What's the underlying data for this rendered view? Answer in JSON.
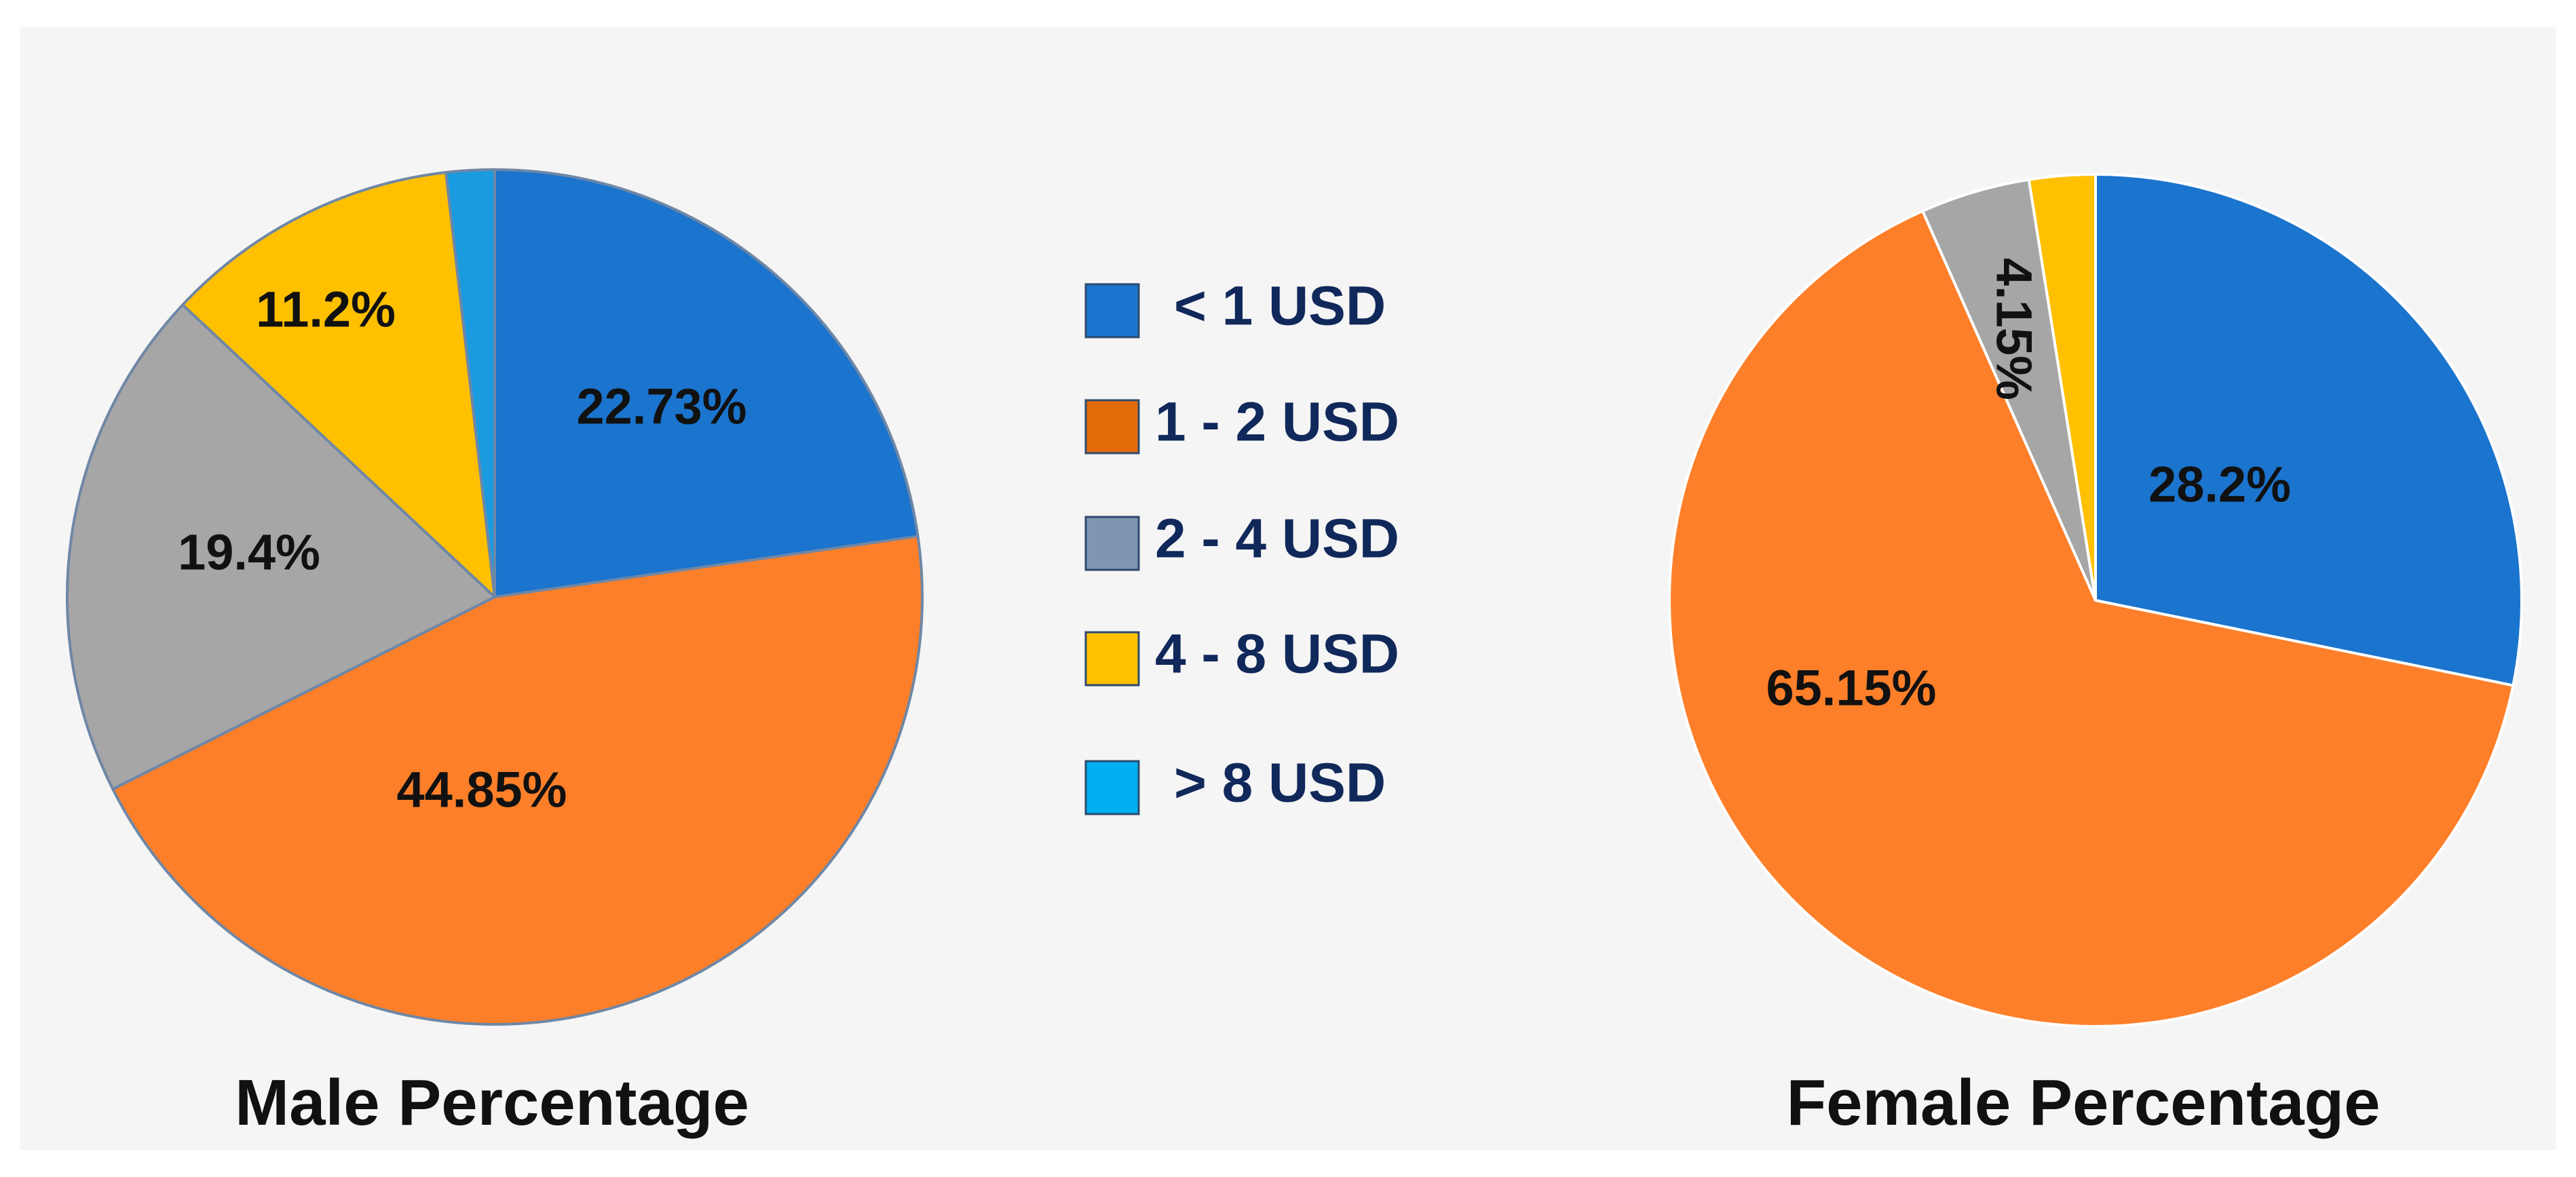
{
  "chart_data": [
    {
      "type": "pie",
      "title": "Male Percentage",
      "slices": [
        {
          "label": "< 1 USD",
          "value": 22.73,
          "text": "22.73%"
        },
        {
          "label": "1 - 2 USD",
          "value": 44.85,
          "text": "44.85%"
        },
        {
          "label": "2 - 4 USD",
          "value": 19.4,
          "text": "19.4%"
        },
        {
          "label": "4 - 8 USD",
          "value": 11.2,
          "text": "11.2%"
        },
        {
          "label": "> 8 USD",
          "value": 1.82,
          "text": ""
        }
      ]
    },
    {
      "type": "pie",
      "title": "Female Percentage",
      "slices": [
        {
          "label": "< 1 USD",
          "value": 28.2,
          "text": "28.2%"
        },
        {
          "label": "1 - 2 USD",
          "value": 65.15,
          "text": "65.15%"
        },
        {
          "label": "2 - 4 USD",
          "value": 4.15,
          "text": "4.15%"
        },
        {
          "label": "4 - 8 USD",
          "value": 2.5,
          "text": ""
        }
      ]
    }
  ],
  "legend": [
    {
      "label": "< 1 USD",
      "color": "#1b74cd"
    },
    {
      "label": "1 - 2 USD",
      "color": "#e36c0a"
    },
    {
      "label": "2 - 4 USD",
      "color": "#8096b0"
    },
    {
      "label": "4 - 8 USD",
      "color": "#ffc000"
    },
    {
      "label": "> 8 USD",
      "color": "#00b0f0"
    }
  ],
  "slice_colors": {
    "male": [
      "#1b74cd",
      "#fd7f29",
      "#a6a6a6",
      "#ffc000",
      "#1a9be0"
    ],
    "female": [
      "#1b74cd",
      "#fd7f29",
      "#a6a6a6",
      "#ffc000"
    ]
  },
  "slice_stroke": {
    "male": "#6f87a6",
    "female": "#ffffff"
  }
}
